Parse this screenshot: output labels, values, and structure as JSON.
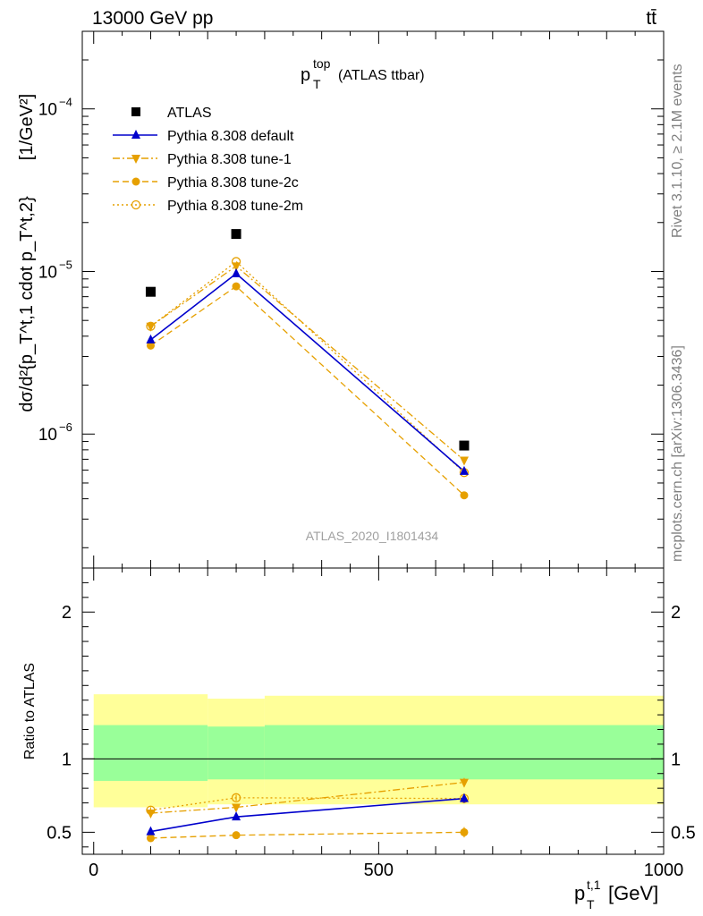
{
  "header": {
    "energy_label": "13000 GeV pp",
    "process_label": "tt̄",
    "side_label_top": "Rivet 3.1.10, ≥ 2.1M events",
    "side_label_bottom": "mcplots.cern.ch [arXiv:1306.3436]",
    "analysis_id": "ATLAS_2020_I1801434"
  },
  "colors": {
    "data": "#000000",
    "default": "#0000cc",
    "tunes": "#e6a000",
    "band_inner": "#99ff99",
    "band_outer": "#ffff99"
  },
  "chart_data": [
    {
      "type": "line",
      "panel": "main",
      "title_main": "p",
      "title_sup": "top",
      "title_sub": "T",
      "title_suffix": "(ATLAS ttbar)",
      "ylabel_main": "dσ/d²{p_T^t,1 cdot p_T^t,2}",
      "ylabel_unit": "[1/GeV²]",
      "y_scale": "log",
      "ylim": [
        1.5e-07,
        0.0003
      ],
      "xlim": [
        -20,
        1000
      ],
      "y_ticks": [
        {
          "value": 1e-06,
          "mantissa": "10",
          "exp": "−6"
        },
        {
          "value": 1e-05,
          "mantissa": "10",
          "exp": "−5"
        },
        {
          "value": 0.0001,
          "mantissa": "10",
          "exp": "−4"
        }
      ],
      "legend_position": "top-left",
      "series": [
        {
          "name": "ATLAS",
          "key": "atlas",
          "marker": "square-filled",
          "line": "none",
          "x": [
            100,
            250,
            650
          ],
          "y": [
            7.5e-06,
            1.7e-05,
            8.5e-07
          ]
        },
        {
          "name": "Pythia 8.308 default",
          "key": "default",
          "marker": "triangle-up-filled",
          "line": "solid",
          "x": [
            100,
            250,
            650
          ],
          "y": [
            3.8e-06,
            9.7e-06,
            5.9e-07
          ]
        },
        {
          "name": "Pythia 8.308 tune-1",
          "key": "tune1",
          "marker": "triangle-down-filled",
          "line": "dashdot",
          "x": [
            100,
            250,
            650
          ],
          "y": [
            4.6e-06,
            1.08e-05,
            6.9e-07
          ]
        },
        {
          "name": "Pythia 8.308 tune-2c",
          "key": "tune2c",
          "marker": "circle-filled",
          "line": "dashed",
          "x": [
            100,
            250,
            650
          ],
          "y": [
            3.5e-06,
            8.1e-06,
            4.2e-07
          ]
        },
        {
          "name": "Pythia 8.308 tune-2m",
          "key": "tune2m",
          "marker": "circle-open",
          "line": "dotted",
          "x": [
            100,
            250,
            650
          ],
          "y": [
            4.6e-06,
            1.15e-05,
            5.8e-07
          ]
        }
      ]
    },
    {
      "type": "line",
      "panel": "ratio",
      "ylabel": "Ratio to ATLAS",
      "xlabel_main": "p",
      "xlabel_sup": "t,1",
      "xlabel_sub": "T",
      "xlabel_unit": "[GeV]",
      "ylim": [
        0.35,
        2.3
      ],
      "xlim": [
        -20,
        1000
      ],
      "x_ticks": [
        0,
        500,
        1000
      ],
      "y_ticks": [
        {
          "value": 0.5,
          "label": "0.5"
        },
        {
          "value": 1,
          "label": "1"
        },
        {
          "value": 2,
          "label": "2"
        }
      ],
      "bands": [
        {
          "x0": 0,
          "x1": 200,
          "inner": [
            0.85,
            1.23
          ],
          "outer": [
            0.67,
            1.44
          ]
        },
        {
          "x0": 200,
          "x1": 300,
          "inner": [
            0.86,
            1.22
          ],
          "outer": [
            0.69,
            1.41
          ]
        },
        {
          "x0": 300,
          "x1": 1000,
          "inner": [
            0.86,
            1.23
          ],
          "outer": [
            0.69,
            1.43
          ]
        }
      ],
      "series": [
        {
          "key": "default",
          "x": [
            100,
            250,
            650
          ],
          "y": [
            0.505,
            0.605,
            0.73
          ],
          "err": [
            0.02,
            0.02,
            0.03
          ]
        },
        {
          "key": "tune1",
          "x": [
            100,
            250,
            650
          ],
          "y": [
            0.63,
            0.67,
            0.84
          ],
          "err": [
            0.02,
            0.02,
            0.03
          ]
        },
        {
          "key": "tune2c",
          "x": [
            100,
            250,
            650
          ],
          "y": [
            0.46,
            0.48,
            0.5
          ],
          "err": [
            0.015,
            0.02,
            0.035
          ]
        },
        {
          "key": "tune2m",
          "x": [
            100,
            250,
            650
          ],
          "y": [
            0.65,
            0.735,
            0.73
          ],
          "err": [
            0.02,
            0.02,
            0.03
          ]
        }
      ]
    }
  ]
}
